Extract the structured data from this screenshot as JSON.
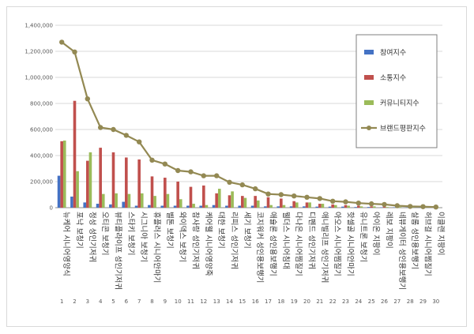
{
  "chart_data": {
    "type": "bar",
    "categories": [
      "뉴케어 시니어영양식",
      "포낙 보청기",
      "정성 성인기저귀",
      "오티콘 보청기",
      "뷰티플라이프 성인기저귀",
      "스타키 보청기",
      "시그니아 보청기",
      "휴플러스 시니어안마기",
      "벨톤 보청기",
      "와이덱스 보청기",
      "참사랑 성인기저귀",
      "케어웰 시니어영양죽",
      "대한 보청기",
      "리피스 성인기저귀",
      "세기 보청기",
      "코지워커 성인용보행기",
      "애슐론 성인용보행기",
      "웰더스 시니어침대",
      "다나은 시니어찜질기",
      "디펜드 성인기저귀",
      "애니빌리프 성인기저귀",
      "아오스 시니어찜질기",
      "핫셀골 시니어안마기",
      "유니트론 보청기",
      "아이온 지팡이",
      "레보 지팡이",
      "네뷰게이터 성인용보행기",
      "살롬 성인용보행기",
      "허브걸 시니어찜질기",
      "이클랜 지팡이"
    ],
    "numbers": [
      "1",
      "2",
      "3",
      "4",
      "5",
      "6",
      "7",
      "8",
      "9",
      "10",
      "11",
      "12",
      "13",
      "14",
      "15",
      "16",
      "17",
      "18",
      "19",
      "20",
      "21",
      "22",
      "23",
      "24",
      "25",
      "26",
      "27",
      "28",
      "29",
      "30"
    ],
    "series": [
      {
        "name": "참여지수",
        "color": "#4472c4",
        "values": [
          245000,
          85000,
          40000,
          30000,
          25000,
          45000,
          15000,
          20000,
          15000,
          15000,
          15000,
          15000,
          20000,
          15000,
          15000,
          15000,
          10000,
          10000,
          10000,
          10000,
          8000,
          8000,
          8000,
          5000,
          5000,
          3000,
          3000,
          2000,
          2000,
          2000
        ]
      },
      {
        "name": "소통지수",
        "color": "#c0504d",
        "values": [
          510000,
          820000,
          360000,
          460000,
          425000,
          385000,
          370000,
          240000,
          230000,
          200000,
          160000,
          170000,
          110000,
          95000,
          90000,
          90000,
          80000,
          70000,
          50000,
          40000,
          30000,
          25000,
          20000,
          15000,
          10000,
          10000,
          8000,
          5000,
          5000,
          3000
        ]
      },
      {
        "name": "커뮤니티지수",
        "color": "#9bbb59",
        "values": [
          515000,
          280000,
          425000,
          105000,
          110000,
          105000,
          110000,
          90000,
          105000,
          65000,
          30000,
          20000,
          145000,
          125000,
          75000,
          55000,
          20000,
          20000,
          40000,
          40000,
          30000,
          20000,
          15000,
          10000,
          10000,
          5000,
          5000,
          3000,
          3000,
          2000
        ]
      },
      {
        "name": "브랜드평판지수",
        "color": "#938953",
        "kind": "line",
        "values": [
          1270000,
          1195000,
          835000,
          615000,
          600000,
          555000,
          505000,
          365000,
          335000,
          285000,
          275000,
          245000,
          245000,
          195000,
          175000,
          145000,
          105000,
          100000,
          90000,
          80000,
          70000,
          50000,
          45000,
          35000,
          30000,
          25000,
          15000,
          10000,
          8000,
          5000
        ]
      }
    ],
    "yticks": [
      "0",
      "200,000",
      "400,000",
      "600,000",
      "800,000",
      "1,000,000",
      "1,200,000",
      "1,400,000"
    ],
    "ylim": [
      0,
      1400000
    ],
    "legend_position": "right",
    "title": "",
    "xlabel": "",
    "ylabel": ""
  }
}
